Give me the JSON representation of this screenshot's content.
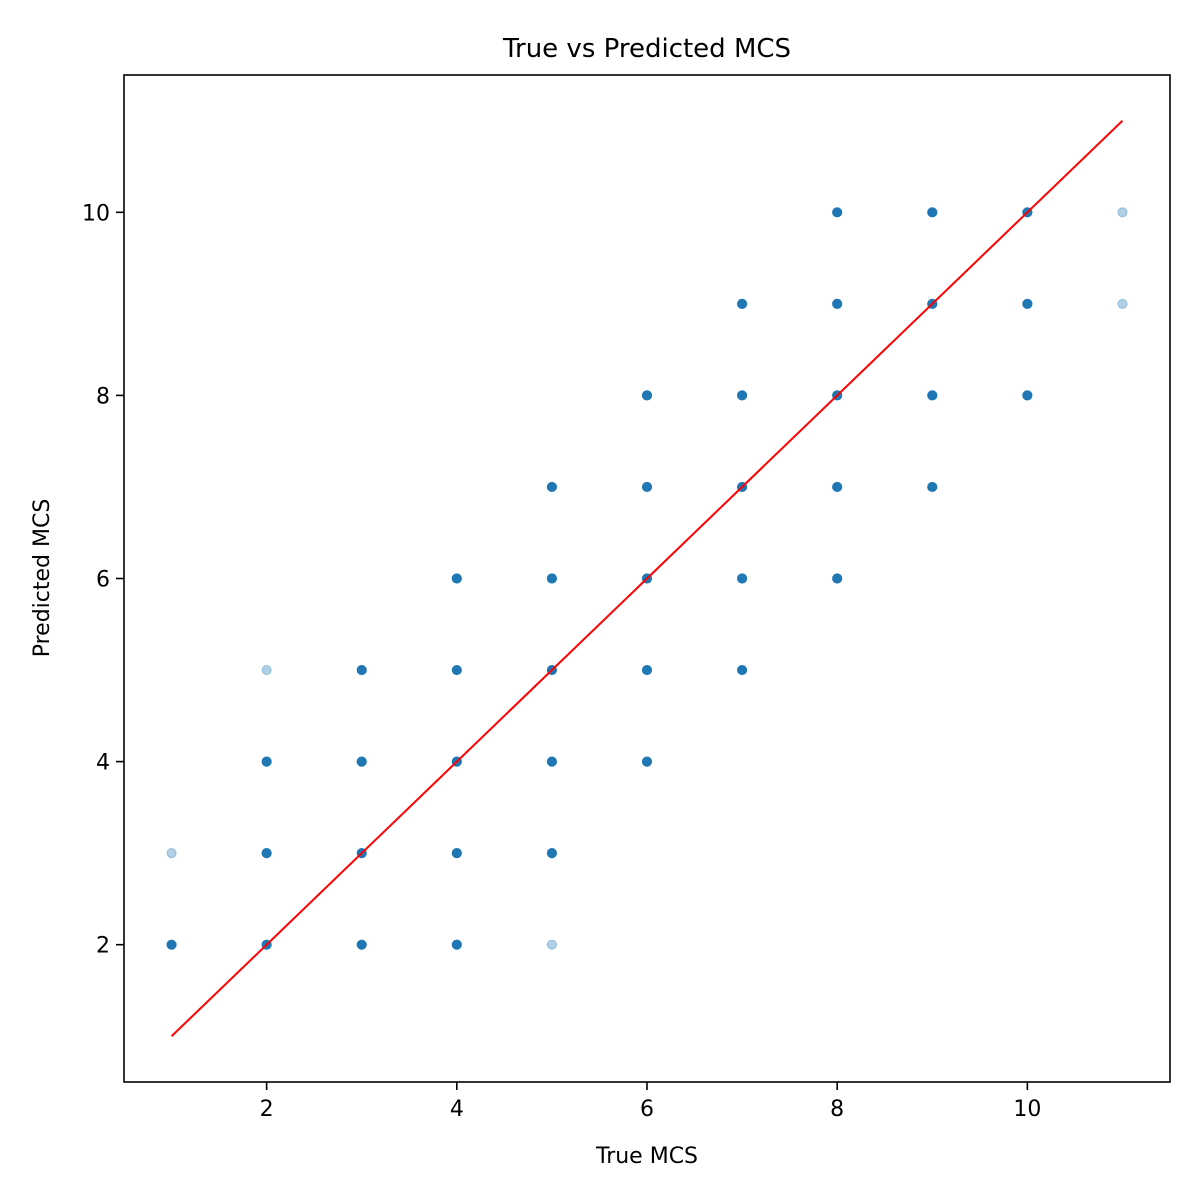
{
  "chart_data": {
    "type": "scatter",
    "title": "True vs Predicted MCS",
    "xlabel": "True MCS",
    "ylabel": "Predicted MCS",
    "xlim": [
      0.5,
      11.5
    ],
    "ylim": [
      0.5,
      11.5
    ],
    "xticks": [
      2,
      4,
      6,
      8,
      10
    ],
    "yticks": [
      2,
      4,
      6,
      8,
      10
    ],
    "grid": false,
    "legend": "none",
    "points": [
      {
        "x": 1,
        "y": 2,
        "faint": false
      },
      {
        "x": 1,
        "y": 3,
        "faint": true
      },
      {
        "x": 2,
        "y": 2,
        "faint": false
      },
      {
        "x": 2,
        "y": 3,
        "faint": false
      },
      {
        "x": 2,
        "y": 4,
        "faint": false
      },
      {
        "x": 2,
        "y": 5,
        "faint": true
      },
      {
        "x": 3,
        "y": 2,
        "faint": false
      },
      {
        "x": 3,
        "y": 3,
        "faint": false
      },
      {
        "x": 3,
        "y": 4,
        "faint": false
      },
      {
        "x": 3,
        "y": 5,
        "faint": false
      },
      {
        "x": 4,
        "y": 2,
        "faint": false
      },
      {
        "x": 4,
        "y": 3,
        "faint": false
      },
      {
        "x": 4,
        "y": 4,
        "faint": false
      },
      {
        "x": 4,
        "y": 5,
        "faint": false
      },
      {
        "x": 4,
        "y": 6,
        "faint": false
      },
      {
        "x": 5,
        "y": 2,
        "faint": true
      },
      {
        "x": 5,
        "y": 3,
        "faint": false
      },
      {
        "x": 5,
        "y": 4,
        "faint": false
      },
      {
        "x": 5,
        "y": 5,
        "faint": false
      },
      {
        "x": 5,
        "y": 6,
        "faint": false
      },
      {
        "x": 5,
        "y": 7,
        "faint": false
      },
      {
        "x": 6,
        "y": 4,
        "faint": false
      },
      {
        "x": 6,
        "y": 5,
        "faint": false
      },
      {
        "x": 6,
        "y": 6,
        "faint": false
      },
      {
        "x": 6,
        "y": 7,
        "faint": false
      },
      {
        "x": 6,
        "y": 8,
        "faint": false
      },
      {
        "x": 7,
        "y": 5,
        "faint": false
      },
      {
        "x": 7,
        "y": 6,
        "faint": false
      },
      {
        "x": 7,
        "y": 7,
        "faint": false
      },
      {
        "x": 7,
        "y": 8,
        "faint": false
      },
      {
        "x": 7,
        "y": 9,
        "faint": false
      },
      {
        "x": 8,
        "y": 6,
        "faint": false
      },
      {
        "x": 8,
        "y": 7,
        "faint": false
      },
      {
        "x": 8,
        "y": 8,
        "faint": false
      },
      {
        "x": 8,
        "y": 9,
        "faint": false
      },
      {
        "x": 8,
        "y": 10,
        "faint": false
      },
      {
        "x": 9,
        "y": 7,
        "faint": false
      },
      {
        "x": 9,
        "y": 8,
        "faint": false
      },
      {
        "x": 9,
        "y": 9,
        "faint": false
      },
      {
        "x": 9,
        "y": 10,
        "faint": false
      },
      {
        "x": 10,
        "y": 8,
        "faint": false
      },
      {
        "x": 10,
        "y": 9,
        "faint": false
      },
      {
        "x": 10,
        "y": 10,
        "faint": false
      },
      {
        "x": 11,
        "y": 9,
        "faint": true
      },
      {
        "x": 11,
        "y": 10,
        "faint": true
      }
    ],
    "reference_line": {
      "x": [
        1,
        11
      ],
      "y": [
        1,
        11
      ]
    },
    "colors": {
      "points": "#1f77b4",
      "reference_line": "#ff0000",
      "axes": "#000000"
    }
  }
}
